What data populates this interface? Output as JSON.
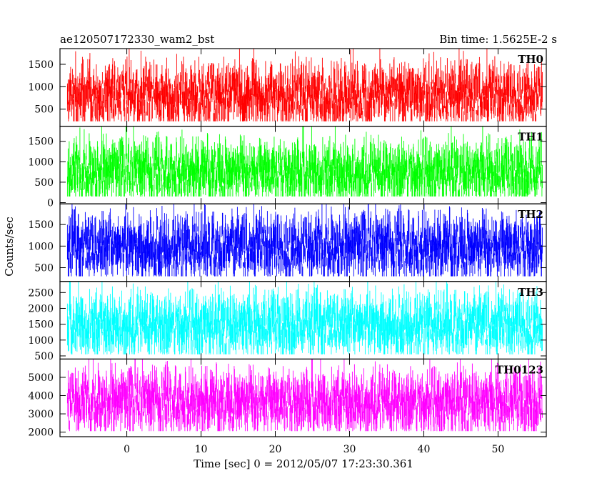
{
  "chart_data": {
    "type": "line",
    "title_left": "ae120507172330_wam2_bst",
    "title_right": "Bin time: 1.5625E-2 s",
    "xlabel": "Time [sec] 0 = 2012/05/07 17:23:30.361",
    "ylabel": "Counts/sec",
    "xlim": [
      -9,
      56.5
    ],
    "x_ticks": [
      0,
      10,
      20,
      30,
      40,
      50
    ],
    "x_tick_labels": [
      "0",
      "10",
      "20",
      "30",
      "40",
      "50"
    ],
    "x_range": [
      -8,
      56
    ],
    "grid": false,
    "panels": [
      {
        "name": "TH0",
        "color": "#ff0000",
        "ylim": [
          120,
          1850
        ],
        "y_ticks": [
          500,
          1000,
          1500
        ],
        "y_tick_labels": [
          "500",
          "1000",
          "1500"
        ],
        "mean": 780,
        "low_envelope": 230,
        "high_envelope": 1750
      },
      {
        "name": "TH1",
        "color": "#00ff00",
        "ylim": [
          -30,
          1870
        ],
        "y_ticks": [
          0,
          500,
          1000,
          1500
        ],
        "y_tick_labels": [
          "0",
          "500",
          "1000",
          "1500"
        ],
        "mean": 730,
        "low_envelope": 150,
        "high_envelope": 1800
      },
      {
        "name": "TH2",
        "color": "#0000ff",
        "ylim": [
          180,
          1980
        ],
        "y_ticks": [
          500,
          1000,
          1500
        ],
        "y_tick_labels": [
          "500",
          "1000",
          "1500"
        ],
        "mean": 950,
        "low_envelope": 300,
        "high_envelope": 1950
      },
      {
        "name": "TH3",
        "color": "#00ffff",
        "ylim": [
          400,
          2850
        ],
        "y_ticks": [
          500,
          1000,
          1500,
          2000,
          2500
        ],
        "y_tick_labels": [
          "500",
          "1000",
          "1500",
          "2000",
          "2500"
        ],
        "mean": 1450,
        "low_envelope": 550,
        "high_envelope": 2750
      },
      {
        "name": "TH0123",
        "color": "#ff00ff",
        "ylim": [
          1750,
          6000
        ],
        "y_ticks": [
          2000,
          3000,
          4000,
          5000
        ],
        "y_tick_labels": [
          "2000",
          "3000",
          "4000",
          "5000"
        ],
        "mean": 3600,
        "low_envelope": 2050,
        "high_envelope": 5800
      }
    ]
  }
}
